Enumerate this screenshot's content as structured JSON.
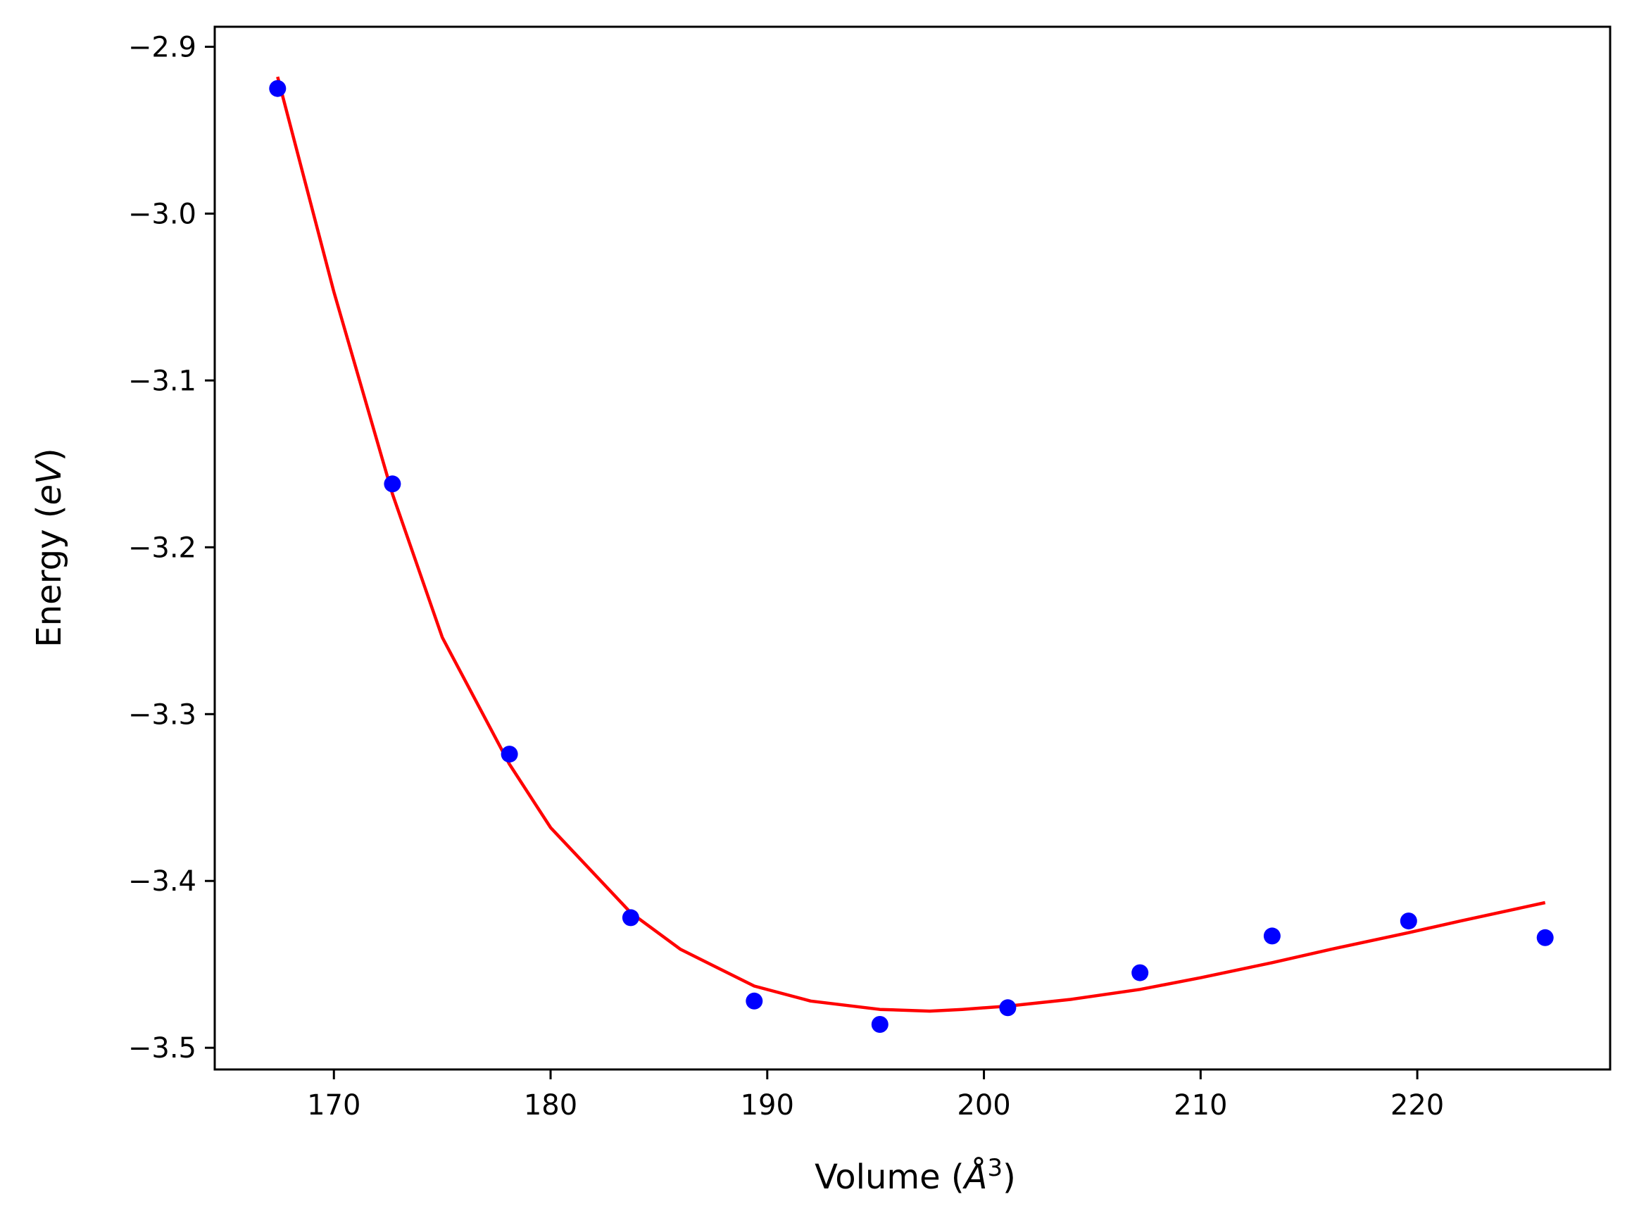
{
  "chart_data": {
    "type": "scatter",
    "title": "",
    "xlabel": "Volume (Å³)",
    "ylabel": "Energy (eV)",
    "xlabel_parts": {
      "pre": "Volume (",
      "symbol": "Å",
      "sup": "3",
      "post": ")"
    },
    "ylabel_parts": {
      "pre": "Energy (",
      "unit": "eV",
      "post": ")"
    },
    "xlim": [
      164.5,
      228.9
    ],
    "ylim": [
      -3.513,
      -2.888
    ],
    "x_ticks": [
      170,
      180,
      190,
      200,
      210,
      220
    ],
    "y_ticks": [
      -2.9,
      -3.0,
      -3.1,
      -3.2,
      -3.3,
      -3.4,
      -3.5
    ],
    "x_tick_labels": [
      "170",
      "180",
      "190",
      "200",
      "210",
      "220"
    ],
    "y_tick_labels": [
      "−2.9",
      "−3.0",
      "−3.1",
      "−3.2",
      "−3.3",
      "−3.4",
      "−3.5"
    ],
    "grid": false,
    "series": [
      {
        "kind": "scatter",
        "color": "#0000ff",
        "x": [
          167.4,
          172.7,
          178.1,
          183.7,
          189.4,
          195.2,
          201.1,
          207.2,
          213.3,
          219.6,
          225.9
        ],
        "y": [
          -2.925,
          -3.162,
          -3.324,
          -3.422,
          -3.472,
          -3.486,
          -3.476,
          -3.455,
          -3.433,
          -3.424,
          -3.434
        ]
      },
      {
        "kind": "line",
        "color": "#ff0000",
        "x": [
          167.4,
          170,
          172.7,
          175,
          178.1,
          180,
          183.7,
          186,
          189.4,
          192,
          195.2,
          197.5,
          199,
          201.1,
          204,
          207.2,
          210,
          213.3,
          216,
          219.6,
          222,
          225.9
        ],
        "y": [
          -2.918,
          -3.047,
          -3.168,
          -3.254,
          -3.33,
          -3.368,
          -3.419,
          -3.441,
          -3.463,
          -3.472,
          -3.477,
          -3.478,
          -3.477,
          -3.475,
          -3.471,
          -3.465,
          -3.458,
          -3.449,
          -3.441,
          -3.431,
          -3.424,
          -3.413
        ]
      }
    ]
  }
}
